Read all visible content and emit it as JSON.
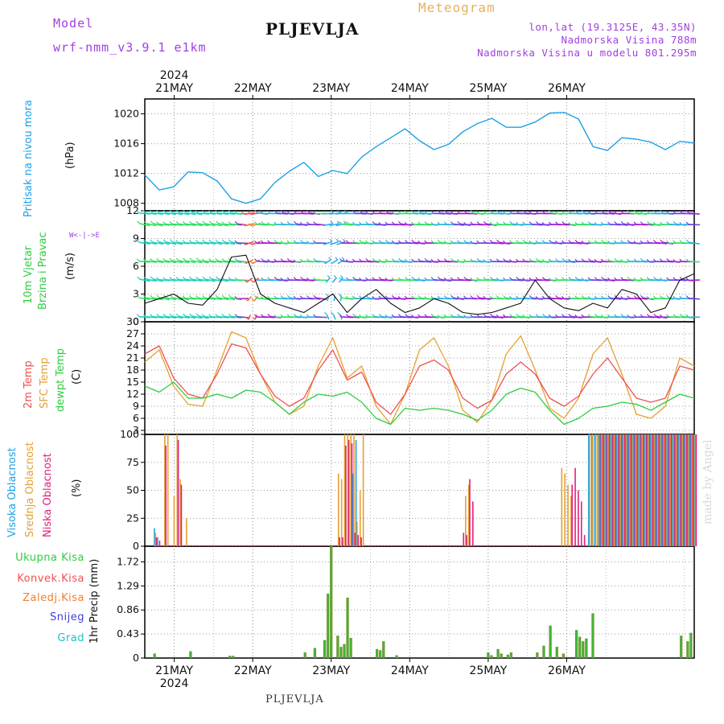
{
  "header": {
    "model_label": "Model",
    "model_name": "wrf-nmm_v3.9.1 e1km",
    "meteogram": "Meteogram",
    "location": "PLJEVLJA",
    "coords": "lon,lat (19.3125E, 43.35N)",
    "altitude": "Nadmorska Visina 788m",
    "model_altitude": "Nadmorska Visina u modelu 801.295m",
    "footer_location": "PLJEVLJA",
    "watermark": "made by Angel"
  },
  "colors": {
    "pressure": "#1ea0e6",
    "temp2m": "#f05050",
    "sfc_temp": "#e6a030",
    "dewpt": "#2ecc40",
    "high_cloud": "#1ea0e6",
    "mid_cloud": "#e6a030",
    "low_cloud": "#e0207a",
    "precip_total": "#2ecc40",
    "precip_conv": "#f05050",
    "precip_frozen": "#f08030",
    "snow": "#4040e0",
    "graupel": "#20c0c0",
    "wind_speed": "#111111"
  },
  "chart_data": {
    "type": "line",
    "time_axis": {
      "year": "2024",
      "days": [
        "21MAY",
        "22MAY",
        "23MAY",
        "24MAY",
        "25MAY",
        "26MAY"
      ],
      "start": "2024-05-20T15:00",
      "end": "2024-05-26T12:00",
      "hours": [
        0,
        6,
        12,
        18,
        24,
        30,
        36,
        42,
        48,
        54,
        60,
        66,
        72,
        78,
        84,
        90,
        96,
        102,
        108,
        114,
        120,
        126,
        132,
        138,
        144,
        150,
        156,
        162,
        168
      ]
    },
    "panels": [
      {
        "id": "pressure",
        "ylabel_lines": [
          "Pritisak na nivou mora",
          "(hPa)"
        ],
        "yticks": [
          1008,
          1012,
          1016,
          1020
        ],
        "ylim": [
          1007,
          1022
        ],
        "series": [
          {
            "values": [
              1011.8,
              1009.8,
              1010.2,
              1012.2,
              1012.1,
              1011.0,
              1008.6,
              1008.0,
              1008.6,
              1010.8,
              1012.3,
              1013.5,
              1011.6,
              1012.4,
              1012.0,
              1014.2,
              1015.6,
              1016.8,
              1018.0,
              1016.4,
              1015.2,
              1015.9,
              1017.6,
              1018.7,
              1019.4,
              1018.2,
              1018.2,
              1018.9,
              1020.1,
              1020.2,
              1019.3,
              1015.6,
              1015.1,
              1016.8,
              1016.6,
              1016.2,
              1015.2,
              1016.3,
              1016.1
            ]
          }
        ]
      },
      {
        "id": "wind",
        "ylabel_lines": [
          "10m Vjetar",
          "Brzina i Pravac",
          "(m/s)"
        ],
        "direction_key": [
          "N",
          "<",
          "|",
          "-",
          "E",
          "W",
          "S"
        ],
        "yticks": [
          0,
          3,
          6,
          9,
          12
        ],
        "ylim": [
          0,
          12
        ],
        "series": [
          {
            "values": [
              2.0,
              2.5,
              3.0,
              2.0,
              1.8,
              3.5,
              7.0,
              7.2,
              3.0,
              2.0,
              1.5,
              1.0,
              2.0,
              3.0,
              1.0,
              2.5,
              3.5,
              2.0,
              1.0,
              1.5,
              2.5,
              2.0,
              1.0,
              0.8,
              1.0,
              1.5,
              2.0,
              4.5,
              2.5,
              1.5,
              1.2,
              2.0,
              1.5,
              3.5,
              3.0,
              1.0,
              1.5,
              4.5,
              5.2
            ]
          }
        ]
      },
      {
        "id": "temperature",
        "ylabel_lines": [
          "2m Temp",
          "SFC Temp",
          "dewpt Temp",
          "(C)"
        ],
        "yticks": [
          3,
          6,
          9,
          12,
          15,
          18,
          21,
          24,
          27,
          30
        ],
        "ylim": [
          2,
          30
        ],
        "series": [
          {
            "name": "2m Temp",
            "values": [
              22.0,
              24.0,
              16.0,
              12.0,
              11.0,
              17.0,
              24.5,
              23.5,
              17.0,
              11.5,
              9.0,
              11.0,
              18.0,
              23.0,
              15.5,
              17.5,
              10.0,
              7.0,
              12.0,
              19.0,
              20.5,
              18.0,
              11.0,
              8.5,
              10.5,
              17.0,
              20.0,
              17.0,
              11.0,
              9.0,
              11.5,
              17.0,
              21.0,
              16.0,
              11.0,
              10.0,
              11.0,
              19.0,
              18.0
            ]
          },
          {
            "name": "SFC Temp",
            "values": [
              20.0,
              23.0,
              14.0,
              9.5,
              9.0,
              18.0,
              27.5,
              26.0,
              17.0,
              10.0,
              7.0,
              9.0,
              19.0,
              26.0,
              16.0,
              19.0,
              9.0,
              4.5,
              12.0,
              23.0,
              26.0,
              19.0,
              8.0,
              5.0,
              10.5,
              22.0,
              26.5,
              18.0,
              8.5,
              6.0,
              11.0,
              22.0,
              26.0,
              17.0,
              7.0,
              6.0,
              9.0,
              21.0,
              19.0
            ]
          },
          {
            "name": "dewpt Temp",
            "values": [
              14.0,
              12.5,
              15.0,
              11.0,
              11.0,
              12.0,
              11.0,
              13.0,
              12.5,
              10.0,
              7.0,
              10.0,
              12.0,
              11.5,
              12.5,
              10.0,
              6.0,
              4.5,
              8.5,
              8.0,
              8.5,
              8.0,
              7.0,
              5.5,
              8.0,
              12.0,
              13.5,
              12.5,
              8.0,
              4.5,
              6.0,
              8.5,
              9.0,
              10.0,
              9.5,
              8.0,
              10.0,
              12.0,
              11.0
            ]
          }
        ]
      },
      {
        "id": "cloud",
        "ylabel_lines": [
          "Visoka Oblacnost",
          "Srednja Oblacnost",
          "Niska Oblacnost",
          "(%)"
        ],
        "yticks": [
          0,
          25,
          50,
          75,
          100
        ],
        "ylim": [
          0,
          100
        ],
        "series": [
          {
            "name": "Visoka Oblacnost",
            "values": [
              16,
              8,
              0,
              0,
              0,
              0,
              0,
              0,
              0,
              0,
              0,
              0,
              0,
              0,
              0,
              0,
              0,
              0,
              0,
              0,
              0,
              0,
              0,
              0,
              0,
              0,
              0,
              0,
              0,
              0,
              0,
              0,
              0,
              0,
              0,
              0,
              0,
              0,
              0,
              0,
              0,
              0,
              0,
              0,
              0,
              0,
              0,
              0,
              0,
              0,
              0,
              0,
              0,
              0,
              0,
              0,
              0,
              0,
              0,
              0,
              0,
              0,
              0,
              0,
              65,
              95,
              0,
              0,
              0,
              0,
              0,
              0,
              0,
              0,
              0,
              0,
              0,
              0,
              0,
              0,
              0,
              0,
              0,
              0,
              0,
              0,
              0,
              0,
              0,
              0,
              0,
              0,
              0,
              0,
              0,
              0,
              0,
              0,
              0,
              0,
              0,
              0,
              0,
              0,
              0,
              0,
              0,
              0,
              0,
              0,
              0,
              0,
              0,
              0,
              0,
              0,
              0,
              0,
              0,
              0,
              0,
              0,
              0,
              0,
              0,
              0,
              0,
              0,
              0,
              0,
              0,
              0,
              0,
              0,
              0,
              0,
              0,
              0,
              0,
              0,
              100,
              100,
              100,
              100,
              100,
              100,
              100,
              100,
              100,
              100,
              100,
              100,
              100,
              100,
              100,
              100,
              100,
              100,
              100,
              100,
              100,
              100,
              100,
              100,
              100,
              100,
              100,
              100,
              100,
              100,
              100,
              100,
              100,
              100,
              100
            ]
          },
          {
            "name": "Srednja Oblacnost",
            "values": [
              12,
              0,
              0,
              100,
              100,
              0,
              45,
              100,
              60,
              0,
              25,
              0,
              0,
              0,
              0,
              0,
              0,
              0,
              0,
              0,
              0,
              0,
              0,
              0,
              0,
              0,
              0,
              0,
              0,
              0,
              0,
              0,
              0,
              0,
              0,
              0,
              0,
              0,
              0,
              0,
              0,
              0,
              0,
              0,
              0,
              0,
              0,
              0,
              0,
              0,
              0,
              0,
              0,
              0,
              0,
              0,
              0,
              0,
              0,
              65,
              60,
              100,
              100,
              100,
              100,
              22,
              50,
              100,
              0,
              0,
              0,
              0,
              0,
              0,
              0,
              0,
              0,
              0,
              0,
              0,
              0,
              0,
              0,
              0,
              0,
              0,
              0,
              0,
              0,
              0,
              0,
              0,
              0,
              0,
              0,
              0,
              0,
              0,
              0,
              0,
              45,
              55,
              0,
              0,
              0,
              0,
              0,
              0,
              0,
              0,
              0,
              0,
              0,
              0,
              0,
              0,
              0,
              0,
              0,
              0,
              0,
              0,
              0,
              0,
              0,
              0,
              0,
              0,
              0,
              0,
              0,
              70,
              65,
              55,
              45,
              0,
              0,
              0,
              0,
              0,
              100,
              100,
              100,
              100,
              100,
              100,
              100,
              100,
              100,
              100,
              100,
              100,
              100,
              100,
              100,
              100,
              100,
              100,
              100,
              100,
              100,
              100,
              100,
              100,
              100,
              100,
              100,
              100,
              100,
              100,
              100,
              100,
              100,
              100,
              100
            ]
          },
          {
            "name": "Niska Oblacnost",
            "values": [
              8,
              5,
              0,
              90,
              0,
              0,
              0,
              95,
              55,
              0,
              0,
              0,
              0,
              0,
              0,
              0,
              0,
              0,
              0,
              0,
              0,
              0,
              0,
              0,
              0,
              0,
              0,
              0,
              0,
              0,
              0,
              0,
              0,
              0,
              0,
              0,
              0,
              0,
              0,
              0,
              0,
              0,
              0,
              0,
              0,
              0,
              0,
              0,
              0,
              0,
              0,
              0,
              0,
              0,
              0,
              0,
              0,
              0,
              0,
              8,
              8,
              90,
              95,
              92,
              12,
              10,
              8,
              0,
              0,
              0,
              0,
              0,
              0,
              0,
              0,
              0,
              0,
              0,
              0,
              0,
              0,
              0,
              0,
              0,
              0,
              0,
              0,
              0,
              0,
              0,
              0,
              0,
              0,
              0,
              0,
              0,
              0,
              0,
              0,
              12,
              10,
              60,
              40,
              0,
              0,
              0,
              0,
              0,
              0,
              0,
              0,
              0,
              0,
              0,
              0,
              0,
              0,
              0,
              0,
              0,
              0,
              0,
              0,
              0,
              0,
              0,
              0,
              0,
              0,
              0,
              0,
              0,
              0,
              0,
              55,
              70,
              50,
              40,
              10,
              0,
              0,
              0,
              0,
              100,
              100,
              100,
              100,
              100,
              100,
              100,
              100,
              100,
              100,
              100,
              100,
              100,
              100,
              100,
              100,
              100,
              100,
              100,
              100,
              100,
              100,
              100,
              100,
              100,
              100,
              100,
              100,
              100,
              100,
              100,
              100,
              100,
              100,
              100
            ]
          }
        ]
      },
      {
        "id": "precip",
        "ylabel_lines": [
          "1hr Precip (mm)"
        ],
        "yticks": [
          0,
          0.43,
          0.86,
          1.29,
          1.72
        ],
        "ylim": [
          0,
          2.0
        ],
        "legend": [
          "Ukupna Kisa",
          "Konvek.Kisa",
          "Zaledj.Kisa",
          "Snijeg",
          "Grad"
        ],
        "series": [
          {
            "name": "Ukupna Kisa",
            "hours": [
              3,
              14,
              26,
              27,
              49,
              52,
              55,
              56,
              57,
              59,
              60,
              61,
              62,
              63,
              71,
              72,
              73,
              77,
              105,
              106,
              108,
              109,
              111,
              112,
              120,
              122,
              124,
              126,
              128,
              132,
              133,
              134,
              135,
              137,
              164,
              166,
              167
            ],
            "values": [
              0.08,
              0.12,
              0.04,
              0.04,
              0.1,
              0.18,
              0.32,
              1.15,
              2.0,
              0.4,
              0.2,
              0.25,
              1.08,
              0.36,
              0.16,
              0.14,
              0.3,
              0.05,
              0.1,
              0.05,
              0.16,
              0.08,
              0.06,
              0.1,
              0.1,
              0.22,
              0.58,
              0.2,
              0.08,
              0.5,
              0.38,
              0.3,
              0.35,
              0.8,
              0.4,
              0.3,
              0.45
            ]
          }
        ]
      }
    ]
  }
}
